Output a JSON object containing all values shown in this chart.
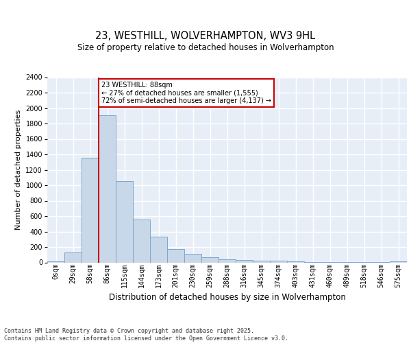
{
  "title": "23, WESTHILL, WOLVERHAMPTON, WV3 9HL",
  "subtitle": "Size of property relative to detached houses in Wolverhampton",
  "xlabel": "Distribution of detached houses by size in Wolverhampton",
  "ylabel": "Number of detached properties",
  "bar_color": "#c8d8e8",
  "bar_edge_color": "#7aa8cc",
  "background_color": "#e8eef8",
  "grid_color": "#ffffff",
  "categories": [
    "0sqm",
    "29sqm",
    "58sqm",
    "86sqm",
    "115sqm",
    "144sqm",
    "173sqm",
    "201sqm",
    "230sqm",
    "259sqm",
    "288sqm",
    "316sqm",
    "345sqm",
    "374sqm",
    "403sqm",
    "431sqm",
    "460sqm",
    "489sqm",
    "518sqm",
    "546sqm",
    "575sqm"
  ],
  "values": [
    10,
    125,
    1360,
    1910,
    1055,
    560,
    335,
    170,
    110,
    65,
    40,
    30,
    25,
    20,
    15,
    5,
    5,
    5,
    5,
    5,
    10
  ],
  "ylim": [
    0,
    2400
  ],
  "yticks": [
    0,
    200,
    400,
    600,
    800,
    1000,
    1200,
    1400,
    1600,
    1800,
    2000,
    2200,
    2400
  ],
  "red_line_index": 3,
  "annotation_text": "23 WESTHILL: 88sqm\n← 27% of detached houses are smaller (1,555)\n72% of semi-detached houses are larger (4,137) →",
  "annotation_box_color": "#ffffff",
  "annotation_border_color": "#cc0000",
  "footer_text": "Contains HM Land Registry data © Crown copyright and database right 2025.\nContains public sector information licensed under the Open Government Licence v3.0.",
  "red_line_color": "#cc0000",
  "title_fontsize": 10.5,
  "subtitle_fontsize": 8.5,
  "ylabel_fontsize": 8,
  "xlabel_fontsize": 8.5,
  "tick_fontsize": 7,
  "footer_fontsize": 6
}
